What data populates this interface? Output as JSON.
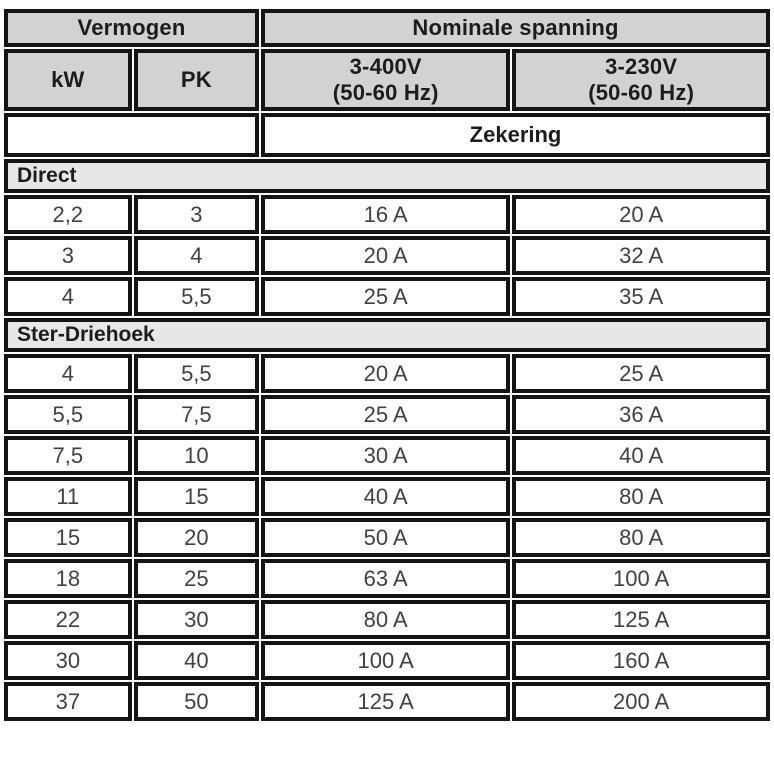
{
  "header": {
    "group1": "Vermogen",
    "group2": "Nominale spanning",
    "col_kw": "kW",
    "col_pk": "PK",
    "col_400v_line1": "3-400V",
    "col_400v_line2": "(50-60 Hz)",
    "col_230v_line1": "3-230V",
    "col_230v_line2": "(50-60 Hz)",
    "zekering": "Zekering"
  },
  "sections": [
    {
      "label": "Direct",
      "rows": [
        [
          "2,2",
          "3",
          "16 A",
          "20 A"
        ],
        [
          "3",
          "4",
          "20 A",
          "32 A"
        ],
        [
          "4",
          "5,5",
          "25 A",
          "35 A"
        ]
      ]
    },
    {
      "label": "Ster-Driehoek",
      "rows": [
        [
          "4",
          "5,5",
          "20 A",
          "25 A"
        ],
        [
          "5,5",
          "7,5",
          "25 A",
          "36 A"
        ],
        [
          "7,5",
          "10",
          "30 A",
          "40 A"
        ],
        [
          "11",
          "15",
          "40 A",
          "80 A"
        ],
        [
          "15",
          "20",
          "50 A",
          "80 A"
        ],
        [
          "18",
          "25",
          "63 A",
          "100 A"
        ],
        [
          "22",
          "30",
          "80 A",
          "125 A"
        ],
        [
          "30",
          "40",
          "100 A",
          "160 A"
        ],
        [
          "37",
          "50",
          "125 A",
          "200 A"
        ]
      ]
    }
  ],
  "colors": {
    "header_bg": "#d2d2d2",
    "section_bg": "#e7e7e7",
    "border": "#141414",
    "header_text": "#1c1c1e",
    "data_text": "#414042"
  }
}
